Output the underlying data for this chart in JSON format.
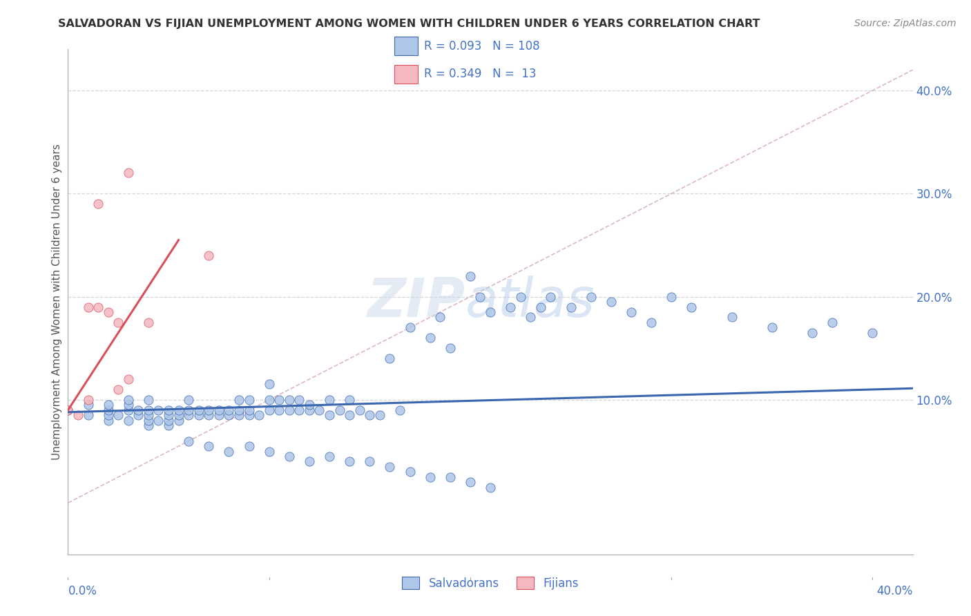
{
  "title": "SALVADORAN VS FIJIAN UNEMPLOYMENT AMONG WOMEN WITH CHILDREN UNDER 6 YEARS CORRELATION CHART",
  "source": "Source: ZipAtlas.com",
  "ylabel": "Unemployment Among Women with Children Under 6 years",
  "ylabel_right_ticks": [
    "40.0%",
    "30.0%",
    "20.0%",
    "10.0%"
  ],
  "ylabel_right_vals": [
    0.4,
    0.3,
    0.2,
    0.1
  ],
  "xlim": [
    0.0,
    0.42
  ],
  "ylim": [
    -0.05,
    0.44
  ],
  "legend1_R": "0.093",
  "legend1_N": "108",
  "legend2_R": "0.349",
  "legend2_N": " 13",
  "watermark_zip": "ZIP",
  "watermark_atlas": "atlas",
  "blue_color": "#aec6e8",
  "pink_color": "#f4b8c0",
  "line_blue": "#3a67b0",
  "line_pink": "#d94f5c",
  "line_diag_color": "#d8b0b8",
  "text_blue": "#4472c4",
  "grid_color": "#cccccc",
  "sal_x": [
    0.0,
    0.01,
    0.01,
    0.02,
    0.02,
    0.02,
    0.02,
    0.025,
    0.03,
    0.03,
    0.03,
    0.03,
    0.035,
    0.035,
    0.04,
    0.04,
    0.04,
    0.04,
    0.04,
    0.045,
    0.045,
    0.05,
    0.05,
    0.05,
    0.05,
    0.055,
    0.055,
    0.055,
    0.06,
    0.06,
    0.06,
    0.065,
    0.065,
    0.07,
    0.07,
    0.075,
    0.075,
    0.08,
    0.08,
    0.085,
    0.085,
    0.085,
    0.09,
    0.09,
    0.09,
    0.095,
    0.1,
    0.1,
    0.1,
    0.105,
    0.105,
    0.11,
    0.11,
    0.115,
    0.115,
    0.12,
    0.12,
    0.125,
    0.13,
    0.13,
    0.135,
    0.14,
    0.14,
    0.145,
    0.15,
    0.155,
    0.16,
    0.165,
    0.17,
    0.18,
    0.185,
    0.19,
    0.2,
    0.205,
    0.21,
    0.22,
    0.225,
    0.23,
    0.235,
    0.24,
    0.25,
    0.26,
    0.27,
    0.28,
    0.29,
    0.3,
    0.31,
    0.33,
    0.35,
    0.37,
    0.38,
    0.4,
    0.06,
    0.07,
    0.08,
    0.09,
    0.1,
    0.11,
    0.12,
    0.13,
    0.14,
    0.15,
    0.16,
    0.17,
    0.18,
    0.19,
    0.2,
    0.21
  ],
  "sal_y": [
    0.09,
    0.085,
    0.095,
    0.08,
    0.085,
    0.09,
    0.095,
    0.085,
    0.08,
    0.09,
    0.095,
    0.1,
    0.085,
    0.09,
    0.075,
    0.08,
    0.085,
    0.09,
    0.1,
    0.08,
    0.09,
    0.075,
    0.08,
    0.085,
    0.09,
    0.08,
    0.085,
    0.09,
    0.085,
    0.09,
    0.1,
    0.085,
    0.09,
    0.085,
    0.09,
    0.085,
    0.09,
    0.085,
    0.09,
    0.085,
    0.09,
    0.1,
    0.085,
    0.09,
    0.1,
    0.085,
    0.09,
    0.1,
    0.115,
    0.09,
    0.1,
    0.09,
    0.1,
    0.09,
    0.1,
    0.09,
    0.095,
    0.09,
    0.085,
    0.1,
    0.09,
    0.085,
    0.1,
    0.09,
    0.085,
    0.085,
    0.14,
    0.09,
    0.17,
    0.16,
    0.18,
    0.15,
    0.22,
    0.2,
    0.185,
    0.19,
    0.2,
    0.18,
    0.19,
    0.2,
    0.19,
    0.2,
    0.195,
    0.185,
    0.175,
    0.2,
    0.19,
    0.18,
    0.17,
    0.165,
    0.175,
    0.165,
    0.06,
    0.055,
    0.05,
    0.055,
    0.05,
    0.045,
    0.04,
    0.045,
    0.04,
    0.04,
    0.035,
    0.03,
    0.025,
    0.025,
    0.02,
    0.015
  ],
  "fij_x": [
    0.0,
    0.005,
    0.01,
    0.01,
    0.015,
    0.015,
    0.02,
    0.025,
    0.025,
    0.03,
    0.03,
    0.04,
    0.07
  ],
  "fij_y": [
    0.09,
    0.085,
    0.19,
    0.1,
    0.29,
    0.19,
    0.185,
    0.11,
    0.175,
    0.12,
    0.32,
    0.175,
    0.24
  ]
}
